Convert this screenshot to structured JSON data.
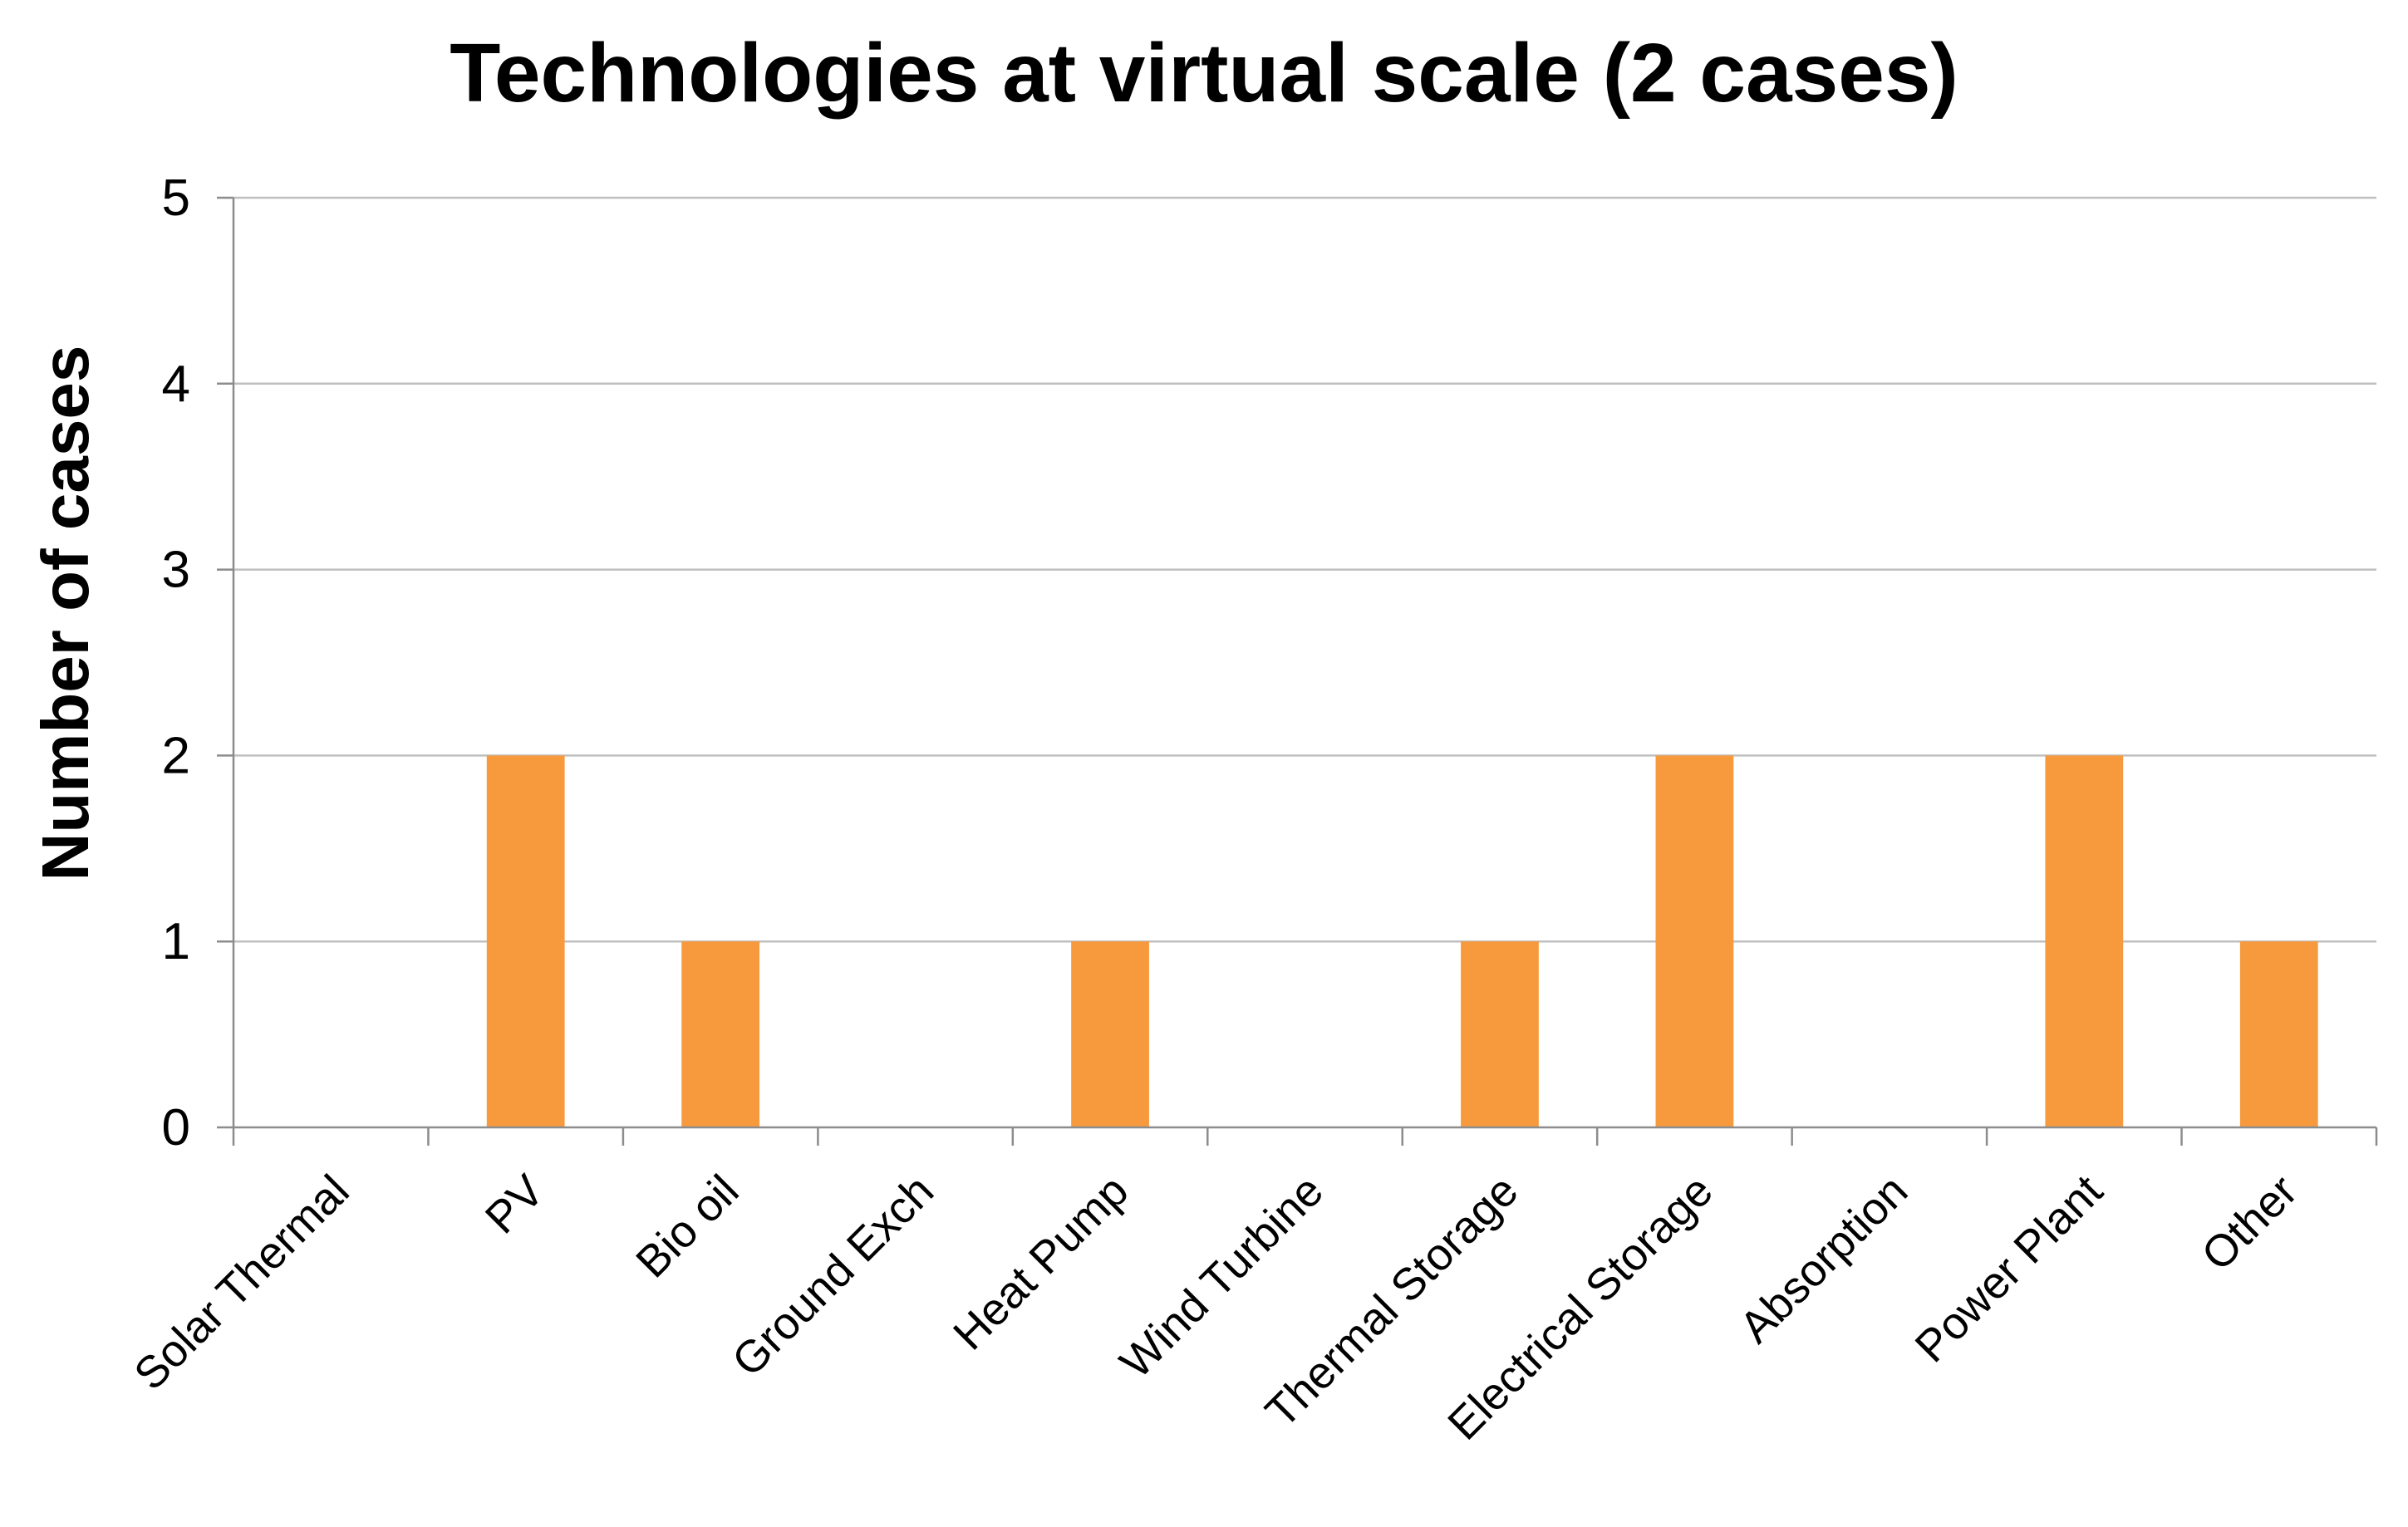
{
  "chart_data": {
    "type": "bar",
    "title": "Technologies at virtual scale (2 cases)",
    "xlabel": "",
    "ylabel": "Number of cases",
    "categories": [
      "Solar Thermal",
      "PV",
      "Bio oil",
      "Ground  Exch",
      "Heat Pump",
      "Wind Turbine",
      "Thermal Storage",
      "Electrical Storage",
      "Absorption",
      "Power Plant",
      "Other"
    ],
    "values": [
      0,
      2,
      1,
      0,
      1,
      0,
      1,
      2,
      0,
      2,
      1
    ],
    "ylim": [
      0,
      5
    ],
    "yticks": [
      "0",
      "1",
      "2",
      "3",
      "4",
      "5"
    ],
    "grid": true,
    "legend": "none",
    "bar_color": "#F79A3E",
    "grid_color": "#BFBFBF",
    "axis_color": "#8C8C8C"
  }
}
